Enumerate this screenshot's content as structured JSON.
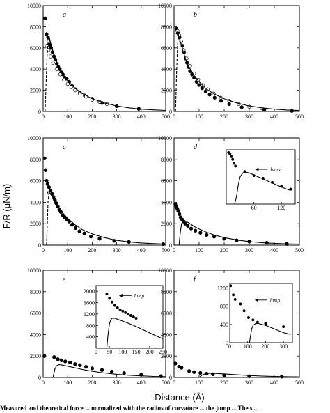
{
  "figure": {
    "ylabel": "F/R (μN/m)",
    "xlabel": "Distance (Å)",
    "caption_fragment": "Measured and theoretical force ... normalized with the radius of curvature ... the jump ... The s..."
  },
  "chart_data": [
    {
      "type": "scatter",
      "panel": "a",
      "xlim": [
        0,
        500
      ],
      "ylim": [
        0,
        10000
      ],
      "xticks": [
        0,
        100,
        200,
        300,
        400,
        500
      ],
      "yticks": [
        0,
        2000,
        4000,
        6000,
        8000,
        10000
      ],
      "series": [
        {
          "marker": "filled-circle",
          "x": [
            8,
            14,
            20,
            26,
            32,
            38,
            44,
            50,
            56,
            62,
            68,
            74,
            80,
            88,
            96,
            106,
            118,
            132,
            150,
            170,
            200,
            240,
            300,
            390
          ],
          "y": [
            8800,
            7300,
            7000,
            6300,
            6000,
            5600,
            5200,
            4900,
            4500,
            4200,
            4000,
            3700,
            3500,
            3200,
            3100,
            2800,
            2400,
            2100,
            1800,
            1500,
            1200,
            800,
            500,
            250
          ]
        },
        {
          "marker": "open-circle",
          "x": [
            15,
            22,
            30,
            40,
            55,
            70,
            85,
            100,
            115,
            130,
            150,
            175,
            200,
            230,
            260
          ],
          "y": [
            6200,
            5800,
            5200,
            4600,
            4000,
            3500,
            3000,
            2600,
            2300,
            2000,
            1700,
            1400,
            1100,
            900,
            700
          ]
        },
        {
          "style": "solid",
          "x": [
            15,
            20,
            25,
            30,
            40,
            50,
            60,
            80,
            100,
            130,
            160,
            200,
            250,
            300,
            350,
            400,
            450,
            500
          ],
          "y": [
            6500,
            7100,
            7000,
            6500,
            5700,
            5000,
            4400,
            3550,
            2900,
            2200,
            1700,
            1200,
            800,
            520,
            340,
            220,
            150,
            100
          ]
        },
        {
          "style": "dashed",
          "x": [
            8,
            12,
            16,
            20,
            24,
            28,
            34,
            40,
            50,
            60
          ],
          "y": [
            0,
            2500,
            5200,
            6500,
            6900,
            6600,
            6000,
            5500,
            5000,
            4400
          ]
        }
      ]
    },
    {
      "type": "scatter",
      "panel": "b",
      "xlim": [
        0,
        500
      ],
      "ylim": [
        0,
        10000
      ],
      "xticks": [
        0,
        100,
        200,
        300,
        400,
        500
      ],
      "yticks": [
        0,
        2000,
        4000,
        6000,
        8000,
        10000
      ],
      "series": [
        {
          "marker": "filled-circle",
          "x": [
            10,
            16,
            22,
            28,
            34,
            40,
            46,
            52,
            58,
            64,
            72,
            80,
            90,
            100,
            112,
            126,
            142,
            162,
            188,
            220,
            270,
            360,
            470
          ],
          "y": [
            7800,
            7400,
            7000,
            6600,
            6200,
            5600,
            5000,
            4600,
            4200,
            3800,
            3500,
            3200,
            2800,
            2500,
            2200,
            1900,
            1600,
            1300,
            1000,
            700,
            400,
            150,
            50
          ]
        },
        {
          "marker": "open-circle",
          "x": [
            14,
            20,
            28,
            38,
            50,
            64,
            80,
            96,
            114,
            134,
            158,
            186,
            220,
            258,
            300,
            350
          ],
          "y": [
            7600,
            7200,
            6600,
            5800,
            5000,
            4300,
            3600,
            3000,
            2500,
            2100,
            1700,
            1300,
            1000,
            700,
            450,
            300
          ]
        },
        {
          "style": "solid",
          "x": [
            8,
            12,
            16,
            20,
            26,
            32,
            40,
            50,
            60,
            80,
            100,
            130,
            160,
            200,
            250,
            300,
            350,
            400,
            450,
            500
          ],
          "y": [
            7300,
            7500,
            7300,
            7000,
            6500,
            6000,
            5400,
            4700,
            4200,
            3400,
            2800,
            2100,
            1650,
            1200,
            800,
            520,
            340,
            220,
            140,
            90
          ]
        },
        {
          "style": "dashed",
          "x": [
            6,
            10,
            14,
            18,
            24
          ],
          "y": [
            0,
            3500,
            6200,
            7300,
            7100
          ]
        }
      ]
    },
    {
      "type": "scatter",
      "panel": "c",
      "xlim": [
        0,
        500
      ],
      "ylim": [
        0,
        10000
      ],
      "xticks": [
        0,
        100,
        200,
        300,
        400,
        500
      ],
      "yticks": [
        0,
        2000,
        4000,
        6000,
        8000,
        10000
      ],
      "series": [
        {
          "marker": "filled-circle",
          "x": [
            6,
            10,
            14,
            18,
            24,
            30,
            36,
            42,
            48,
            54,
            60,
            66,
            72,
            80,
            88,
            96,
            106,
            118,
            132,
            148,
            168,
            195,
            230,
            290,
            350,
            490
          ],
          "y": [
            8100,
            7000,
            6000,
            5700,
            5400,
            5100,
            4800,
            4500,
            4200,
            3900,
            3600,
            3300,
            3100,
            2800,
            2600,
            2400,
            2200,
            1900,
            1600,
            1300,
            1100,
            800,
            600,
            400,
            300,
            100
          ]
        },
        {
          "style": "solid",
          "x": [
            15,
            20,
            26,
            32,
            40,
            50,
            60,
            80,
            100,
            130,
            160,
            200,
            250,
            300,
            350,
            400,
            450,
            500
          ],
          "y": [
            4700,
            5000,
            4900,
            4700,
            4300,
            3900,
            3600,
            3000,
            2500,
            1900,
            1450,
            1050,
            700,
            450,
            300,
            200,
            140,
            100
          ]
        },
        {
          "style": "dashed",
          "x": [
            14,
            17,
            20,
            24,
            28,
            34,
            40,
            50
          ],
          "y": [
            0,
            2000,
            4000,
            4900,
            4900,
            4700,
            4400,
            4000
          ]
        }
      ]
    },
    {
      "type": "scatter",
      "panel": "d",
      "xlim": [
        0,
        500
      ],
      "ylim": [
        0,
        10000
      ],
      "xticks": [
        0,
        100,
        200,
        300,
        400,
        500
      ],
      "yticks": [
        0,
        2000,
        4000,
        6000,
        8000,
        10000
      ],
      "series": [
        {
          "marker": "filled-circle",
          "x": [
            5,
            9,
            13,
            17,
            21,
            26,
            32,
            38,
            45,
            55,
            68,
            85,
            105,
            130,
            160,
            200,
            250,
            300,
            370,
            450
          ],
          "y": [
            3800,
            3600,
            3400,
            3200,
            2900,
            2600,
            2400,
            2200,
            2000,
            1800,
            1550,
            1350,
            1150,
            950,
            800,
            600,
            450,
            330,
            220,
            120
          ]
        },
        {
          "style": "solid",
          "x": [
            20,
            25,
            30,
            36,
            42,
            50,
            60,
            80,
            100,
            130,
            160,
            200,
            250,
            300,
            350,
            400,
            450,
            500
          ],
          "y": [
            0,
            1200,
            2000,
            2250,
            2300,
            2200,
            2050,
            1750,
            1500,
            1200,
            950,
            700,
            480,
            330,
            230,
            170,
            120,
            90
          ]
        }
      ],
      "inset": {
        "xlim": [
          0,
          150
        ],
        "ylim": [
          0,
          4000
        ],
        "xticks": [
          60,
          120
        ],
        "yticks": [],
        "annotation": "Jump",
        "series": [
          {
            "marker": "filled-circle",
            "x": [
              5,
              8,
              11,
              14,
              17,
              20,
              40,
              60,
              80,
              100,
              120,
              140
            ],
            "y": [
              3800,
              3700,
              3500,
              3300,
              3000,
              2800,
              2400,
              2100,
              1900,
              1600,
              1300,
              1100
            ]
          },
          {
            "style": "solid",
            "x": [
              18,
              22,
              26,
              30,
              36,
              42,
              50,
              60,
              80,
              100,
              120,
              140
            ],
            "y": [
              0,
              500,
              1400,
              2000,
              2300,
              2350,
              2300,
              2150,
              1850,
              1550,
              1250,
              1000
            ]
          }
        ]
      }
    },
    {
      "type": "scatter",
      "panel": "e",
      "xlim": [
        0,
        500
      ],
      "ylim": [
        0,
        10000
      ],
      "xticks": [
        0,
        100,
        200,
        300,
        400,
        500
      ],
      "yticks": [
        0,
        2000,
        4000,
        6000,
        8000,
        10000
      ],
      "series": [
        {
          "marker": "filled-circle",
          "x": [
            5,
            45,
            60,
            75,
            90,
            110,
            130,
            150,
            175,
            200,
            240,
            280,
            330,
            400,
            480
          ],
          "y": [
            2000,
            1900,
            1700,
            1600,
            1500,
            1400,
            1250,
            1150,
            1000,
            850,
            700,
            550,
            400,
            250,
            120
          ]
        },
        {
          "style": "solid",
          "x": [
            40,
            44,
            48,
            55,
            65,
            80,
            100,
            130,
            160,
            200,
            250,
            300,
            350,
            400,
            450,
            500
          ],
          "y": [
            0,
            400,
            800,
            1100,
            1200,
            1150,
            1050,
            900,
            750,
            580,
            420,
            300,
            210,
            150,
            100,
            70
          ]
        }
      ],
      "inset": {
        "xlim": [
          0,
          250
        ],
        "ylim": [
          0,
          2200
        ],
        "xticks": [
          0,
          50,
          100,
          150,
          200,
          250
        ],
        "yticks": [
          400,
          800,
          1200,
          1600,
          2000
        ],
        "annotation": "Jump",
        "series": [
          {
            "marker": "filled-circle",
            "x": [
              40,
              50,
              60,
              70,
              80,
              90,
              100,
              110,
              120,
              130,
              140,
              150
            ],
            "y": [
              1900,
              1750,
              1620,
              1500,
              1420,
              1350,
              1300,
              1250,
              1200,
              1150,
              1100,
              1050
            ]
          },
          {
            "style": "solid",
            "x": [
              40,
              45,
              50,
              55,
              60,
              70,
              80,
              100,
              125,
              150,
              175,
              200,
              225,
              250
            ],
            "y": [
              0,
              500,
              850,
              1000,
              1050,
              1050,
              1020,
              950,
              860,
              760,
              650,
              540,
              430,
              330
            ]
          }
        ]
      }
    },
    {
      "type": "scatter",
      "panel": "f",
      "xlim": [
        0,
        500
      ],
      "ylim": [
        0,
        10000
      ],
      "xticks": [
        0,
        100,
        200,
        300,
        400,
        500
      ],
      "yticks": [
        0,
        2000,
        4000,
        6000,
        8000,
        10000
      ],
      "series": [
        {
          "marker": "filled-circle",
          "x": [
            5,
            20,
            30,
            60,
            80,
            105,
            130,
            155,
            200,
            300,
            430
          ],
          "y": [
            1300,
            1000,
            900,
            600,
            500,
            420,
            350,
            300,
            200,
            120,
            80
          ]
        },
        {
          "style": "solid",
          "x": [
            100,
            108,
            116,
            125,
            140,
            160,
            200,
            250,
            300,
            350,
            400,
            450,
            500
          ],
          "y": [
            0,
            150,
            280,
            350,
            380,
            380,
            330,
            250,
            180,
            130,
            100,
            70,
            50
          ]
        }
      ],
      "inset": {
        "xlim": [
          0,
          350
        ],
        "ylim": [
          0,
          1300
        ],
        "xticks": [
          0,
          100,
          200,
          300
        ],
        "yticks": [
          0,
          400,
          800,
          1200
        ],
        "annotation": "Jump",
        "series": [
          {
            "marker": "filled-circle",
            "x": [
              5,
              20,
              30,
              60,
              80,
              105,
              130,
              155,
              200,
              300
            ],
            "y": [
              1250,
              1050,
              950,
              850,
              700,
              550,
              500,
              450,
              420,
              350
            ]
          },
          {
            "style": "solid",
            "x": [
              110,
              116,
              122,
              130,
              145,
              160,
              180,
              200,
              250,
              300,
              340
            ],
            "y": [
              0,
              150,
              300,
              380,
              420,
              420,
              400,
              380,
              300,
              220,
              180
            ]
          }
        ]
      }
    }
  ]
}
